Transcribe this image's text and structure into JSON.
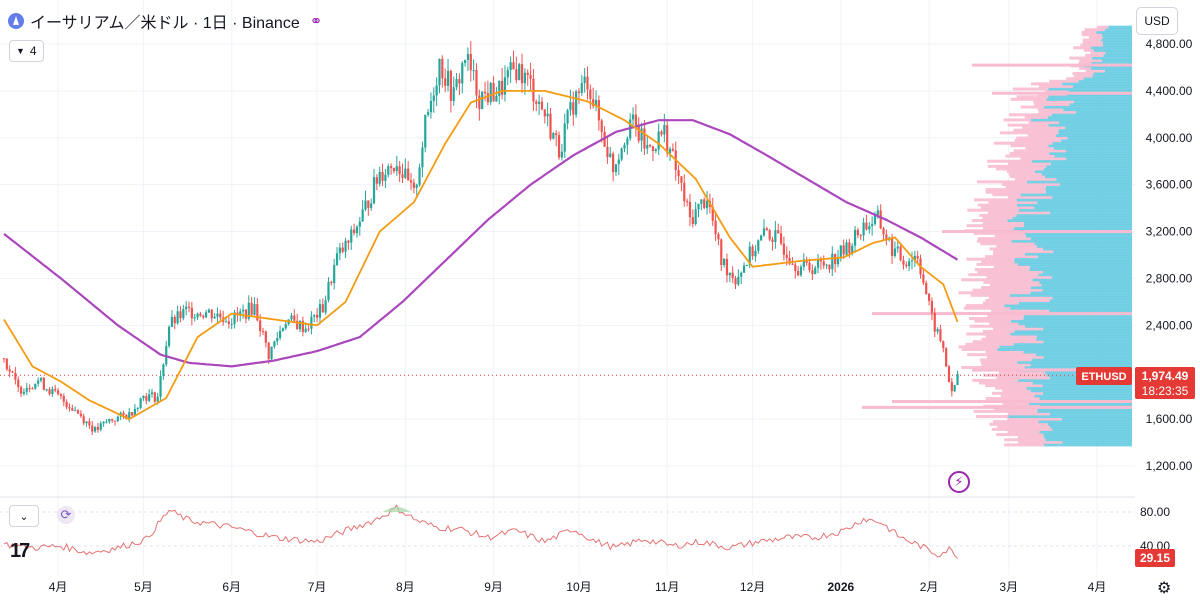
{
  "header": {
    "symbol_title": "イーサリアム／米ドル · 1日 · Binance",
    "indicator_count": "4",
    "currency": "USD"
  },
  "icons": {
    "coin": "ethereum-icon",
    "share": "share-icon",
    "collapse": "chevron-down-icon",
    "refresh": "refresh-icon",
    "lightning": "lightning-icon",
    "settings": "gear-icon",
    "logo": "tradingview-logo-icon"
  },
  "colors": {
    "up": "#26a69a",
    "down": "#ef5350",
    "ma_short": "#f39c12",
    "ma_long": "#ab47bc",
    "rsi": "#e57373",
    "price_label": "#e53935",
    "vp_up": "#5fc9e0",
    "vp_down": "#f8bbd0"
  },
  "chart_data": {
    "type": "candlestick",
    "symbol": "ETHUSD",
    "current_price": "1,974.49",
    "countdown": "18:23:35",
    "y_ticks": [
      "4,800.00",
      "4,400.00",
      "4,000.00",
      "3,600.00",
      "3,200.00",
      "2,800.00",
      "2,400.00",
      "1,600.00",
      "1,200.00"
    ],
    "y_tick_values": [
      4800,
      4400,
      4000,
      3600,
      3200,
      2800,
      2400,
      1600,
      1200
    ],
    "ylim": [
      1000,
      5000
    ],
    "x_labels": [
      "4月",
      "5月",
      "6月",
      "7月",
      "8月",
      "9月",
      "10月",
      "11月",
      "12月",
      "2026",
      "2月",
      "3月",
      "4月"
    ],
    "x_label_days": [
      19,
      49,
      80,
      110,
      141,
      172,
      202,
      233,
      263,
      294,
      325,
      353,
      384
    ],
    "xlim": [
      0,
      397
    ],
    "last_candle_day": 335,
    "close_anchors": [
      [
        0,
        2120
      ],
      [
        5,
        1850
      ],
      [
        12,
        1930
      ],
      [
        18,
        1810
      ],
      [
        25,
        1680
      ],
      [
        32,
        1500
      ],
      [
        37,
        1590
      ],
      [
        44,
        1640
      ],
      [
        49,
        1800
      ],
      [
        54,
        1790
      ],
      [
        58,
        2400
      ],
      [
        64,
        2520
      ],
      [
        72,
        2510
      ],
      [
        80,
        2450
      ],
      [
        88,
        2560
      ],
      [
        93,
        2150
      ],
      [
        99,
        2450
      ],
      [
        106,
        2380
      ],
      [
        112,
        2550
      ],
      [
        117,
        2980
      ],
      [
        121,
        3100
      ],
      [
        126,
        3350
      ],
      [
        132,
        3700
      ],
      [
        138,
        3800
      ],
      [
        144,
        3500
      ],
      [
        148,
        4100
      ],
      [
        153,
        4650
      ],
      [
        158,
        4350
      ],
      [
        162,
        4700
      ],
      [
        167,
        4350
      ],
      [
        174,
        4400
      ],
      [
        180,
        4600
      ],
      [
        185,
        4450
      ],
      [
        190,
        4200
      ],
      [
        195,
        3900
      ],
      [
        200,
        4300
      ],
      [
        205,
        4500
      ],
      [
        210,
        4050
      ],
      [
        214,
        3750
      ],
      [
        220,
        4150
      ],
      [
        226,
        3900
      ],
      [
        232,
        4050
      ],
      [
        237,
        3650
      ],
      [
        241,
        3300
      ],
      [
        247,
        3500
      ],
      [
        252,
        2950
      ],
      [
        257,
        2800
      ],
      [
        262,
        3000
      ],
      [
        268,
        3200
      ],
      [
        273,
        3100
      ],
      [
        279,
        2900
      ],
      [
        285,
        2900
      ],
      [
        290,
        2950
      ],
      [
        296,
        3050
      ],
      [
        302,
        3250
      ],
      [
        307,
        3300
      ],
      [
        312,
        3050
      ],
      [
        316,
        2950
      ],
      [
        321,
        3000
      ],
      [
        326,
        2450
      ],
      [
        330,
        2200
      ],
      [
        333,
        1800
      ],
      [
        335,
        1974
      ]
    ],
    "ma_short_anchors": [
      [
        0,
        2450
      ],
      [
        10,
        2050
      ],
      [
        20,
        1920
      ],
      [
        30,
        1760
      ],
      [
        44,
        1600
      ],
      [
        57,
        1780
      ],
      [
        68,
        2300
      ],
      [
        80,
        2500
      ],
      [
        95,
        2450
      ],
      [
        110,
        2400
      ],
      [
        120,
        2600
      ],
      [
        132,
        3200
      ],
      [
        144,
        3450
      ],
      [
        155,
        3950
      ],
      [
        164,
        4300
      ],
      [
        175,
        4400
      ],
      [
        190,
        4400
      ],
      [
        205,
        4310
      ],
      [
        218,
        4150
      ],
      [
        230,
        3950
      ],
      [
        243,
        3650
      ],
      [
        255,
        3150
      ],
      [
        263,
        2900
      ],
      [
        280,
        2950
      ],
      [
        295,
        2980
      ],
      [
        305,
        3100
      ],
      [
        313,
        3150
      ],
      [
        322,
        2900
      ],
      [
        330,
        2750
      ],
      [
        335,
        2430
      ]
    ],
    "ma_long_anchors": [
      [
        0,
        3180
      ],
      [
        20,
        2800
      ],
      [
        40,
        2400
      ],
      [
        55,
        2150
      ],
      [
        65,
        2080
      ],
      [
        80,
        2050
      ],
      [
        95,
        2100
      ],
      [
        110,
        2180
      ],
      [
        125,
        2300
      ],
      [
        140,
        2600
      ],
      [
        155,
        2950
      ],
      [
        170,
        3300
      ],
      [
        185,
        3600
      ],
      [
        200,
        3850
      ],
      [
        215,
        4050
      ],
      [
        230,
        4150
      ],
      [
        242,
        4150
      ],
      [
        255,
        4030
      ],
      [
        268,
        3850
      ],
      [
        282,
        3650
      ],
      [
        296,
        3450
      ],
      [
        310,
        3300
      ],
      [
        322,
        3150
      ],
      [
        335,
        2960
      ]
    ],
    "rsi": {
      "y_ticks": [
        "80.00",
        "40.00"
      ],
      "y_tick_values": [
        80,
        40
      ],
      "ylim": [
        20,
        90
      ],
      "current_value": "29.15",
      "anchors": [
        [
          0,
          42
        ],
        [
          10,
          38
        ],
        [
          20,
          40
        ],
        [
          30,
          32
        ],
        [
          40,
          38
        ],
        [
          50,
          48
        ],
        [
          58,
          82
        ],
        [
          65,
          70
        ],
        [
          80,
          62
        ],
        [
          95,
          50
        ],
        [
          110,
          45
        ],
        [
          120,
          58
        ],
        [
          130,
          70
        ],
        [
          138,
          85
        ],
        [
          145,
          70
        ],
        [
          152,
          62
        ],
        [
          160,
          60
        ],
        [
          170,
          50
        ],
        [
          180,
          58
        ],
        [
          190,
          45
        ],
        [
          200,
          60
        ],
        [
          208,
          45
        ],
        [
          215,
          38
        ],
        [
          225,
          48
        ],
        [
          235,
          40
        ],
        [
          245,
          45
        ],
        [
          255,
          38
        ],
        [
          265,
          45
        ],
        [
          275,
          50
        ],
        [
          285,
          50
        ],
        [
          295,
          58
        ],
        [
          302,
          72
        ],
        [
          308,
          68
        ],
        [
          315,
          50
        ],
        [
          322,
          40
        ],
        [
          328,
          30
        ],
        [
          332,
          36
        ],
        [
          335,
          29
        ]
      ]
    },
    "volume_profile_note": ""
  }
}
